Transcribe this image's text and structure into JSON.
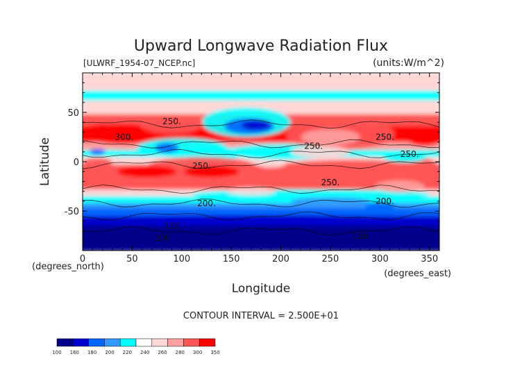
{
  "chart_data": {
    "type": "heatmap",
    "title": "Upward Longwave Radiation Flux",
    "subtitle_left": "[ULWRF_1954-07_NCEP.nc]",
    "subtitle_right": "(units:W/m^2)",
    "xlabel": "Longitude",
    "ylabel": "Latitude",
    "x_unit": "(degrees_east)",
    "y_unit": "(degrees_north)",
    "xlim": [
      0,
      360
    ],
    "ylim": [
      -90,
      90
    ],
    "x_ticks": [
      0,
      50,
      100,
      150,
      200,
      250,
      300,
      350
    ],
    "y_ticks": [
      -50,
      0,
      50
    ],
    "x_tick_labels": [
      "0",
      "50",
      "100",
      "150",
      "200",
      "250",
      "300",
      "350"
    ],
    "y_tick_labels": [
      "-50",
      "0",
      "50"
    ],
    "contour_interval_label": "CONTOUR INTERVAL = 2.500E+01",
    "colorbar": {
      "ticks": [
        "100",
        "160",
        "180",
        "200",
        "220",
        "240",
        "260",
        "280",
        "300",
        "350"
      ],
      "colors": [
        "#00008b",
        "#0000cd",
        "#0066ff",
        "#3399ff",
        "#00ffff",
        "#ffffff",
        "#ffd7d7",
        "#ffa0a0",
        "#ff5555",
        "#ff0000"
      ]
    },
    "contour_labels": [
      {
        "text": "250.",
        "lon": 90,
        "lat": 38
      },
      {
        "text": "300.",
        "lon": 42,
        "lat": 22
      },
      {
        "text": "250.",
        "lon": 120,
        "lat": -7
      },
      {
        "text": "250.",
        "lon": 233,
        "lat": 13
      },
      {
        "text": "250.",
        "lon": 305,
        "lat": 22
      },
      {
        "text": "250.",
        "lon": 330,
        "lat": 5
      },
      {
        "text": "250.",
        "lon": 250,
        "lat": -24
      },
      {
        "text": "200.",
        "lon": 125,
        "lat": -45
      },
      {
        "text": "200.",
        "lon": 305,
        "lat": -43
      },
      {
        "text": "150",
        "lon": 90,
        "lat": -68
      },
      {
        "text": "100",
        "lon": 80,
        "lat": -80
      },
      {
        "text": "150",
        "lon": 280,
        "lat": -78
      }
    ]
  }
}
